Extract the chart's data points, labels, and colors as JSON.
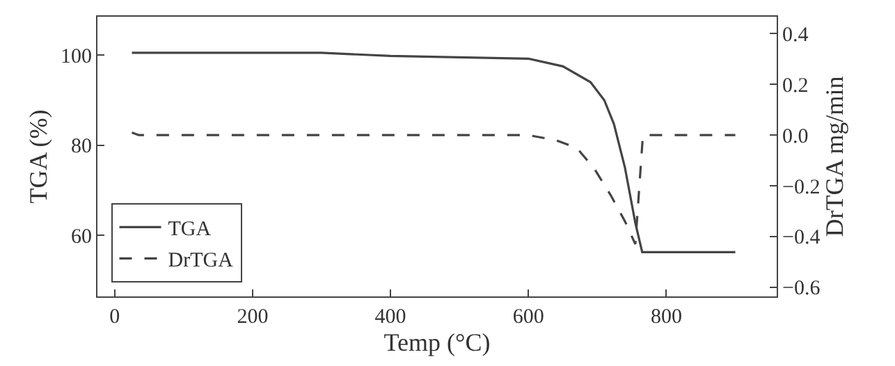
{
  "chart_data": {
    "type": "line",
    "xlabel": "Temp (°C)",
    "ylabel": "TGA (%)",
    "y2label": "DrTGA mg/min",
    "xlim": [
      -25,
      960
    ],
    "xticks": [
      0,
      200,
      400,
      600,
      800
    ],
    "ylim": [
      46.5,
      108.5
    ],
    "yticks": [
      60,
      80,
      100
    ],
    "y2lim": [
      -0.636,
      0.467
    ],
    "y2ticks": [
      {
        "value": -0.6,
        "label": "−0.6"
      },
      {
        "value": -0.4,
        "label": "−0.4"
      },
      {
        "value": -0.2,
        "label": "−0.2"
      },
      "0.0",
      0.2,
      0.4
    ],
    "legend": "bottom left",
    "series": [
      {
        "name": "TGA",
        "color": "#444444",
        "line_style": "solid",
        "x": [
          25,
          300,
          400,
          500,
          600,
          650,
          690,
          710,
          724,
          740,
          755,
          765,
          900
        ],
        "values": [
          100.5,
          100.5,
          99.8,
          99.5,
          99.2,
          97.5,
          94,
          90,
          84.7,
          75,
          62.8,
          56.3,
          56.3
        ]
      },
      {
        "name": "DrTGA",
        "color": "#444444",
        "line_style": "dashed",
        "axis": "y2",
        "x": [
          25,
          35,
          600,
          640,
          670,
          695,
          720,
          740,
          755,
          766,
          900
        ],
        "values": [
          0.01,
          0.0,
          0.0,
          -0.02,
          -0.05,
          -0.13,
          -0.24,
          -0.34,
          -0.43,
          0.0,
          0.0
        ]
      }
    ]
  }
}
